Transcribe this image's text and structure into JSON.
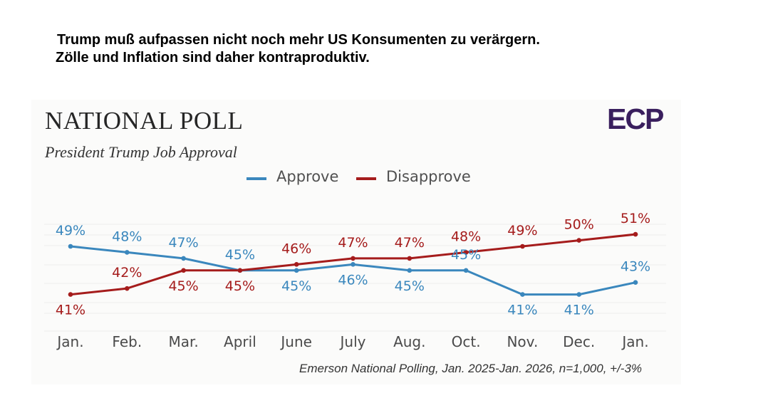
{
  "headline": {
    "line1": "Trump muß aufpassen nicht noch mehr US Konsumenten zu verärgern.",
    "line2": "Zölle und Inflation sind daher kontraproduktiv."
  },
  "poll": {
    "title": "NATIONAL POLL",
    "subtitle": "President Trump Job Approval",
    "logo": "ECP",
    "source": "Emerson National Polling, Jan. 2025-Jan. 2026, n=1,000, +/-3%"
  },
  "colors": {
    "approve": "#3a87bd",
    "disapprove": "#a51c1c",
    "logo": "#3a1f5e"
  },
  "chart_data": {
    "type": "line",
    "title": "NATIONAL POLL",
    "subtitle": "President Trump Job Approval",
    "categories": [
      "Jan.",
      "Feb.",
      "Mar.",
      "April",
      "June",
      "July",
      "Aug.",
      "Oct.",
      "Nov.",
      "Dec.",
      "Jan."
    ],
    "series": [
      {
        "name": "Approve",
        "color": "#3a87bd",
        "values": [
          49,
          48,
          47,
          45,
          45,
          46,
          45,
          45,
          41,
          41,
          43
        ],
        "labels": [
          "49%",
          "48%",
          "47%",
          "45%",
          "45%",
          "46%",
          "45%",
          "45%",
          "41%",
          "41%",
          "43%"
        ]
      },
      {
        "name": "Disapprove",
        "color": "#a51c1c",
        "values": [
          41,
          42,
          45,
          45,
          46,
          47,
          47,
          48,
          49,
          50,
          51
        ],
        "labels": [
          "41%",
          "42%",
          "45%",
          "45%",
          "46%",
          "47%",
          "47%",
          "48%",
          "49%",
          "50%",
          "51%"
        ]
      }
    ],
    "ylim": [
      38,
      53
    ],
    "legend": "top-center",
    "grid": true,
    "xlabel": "",
    "ylabel": ""
  }
}
